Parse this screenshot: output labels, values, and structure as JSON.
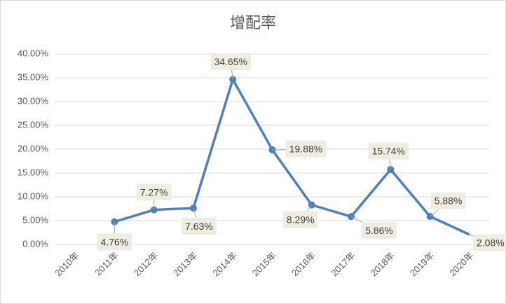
{
  "chart_data": {
    "type": "line",
    "title": "增配率",
    "categories": [
      "2010年",
      "2011年",
      "2012年",
      "2013年",
      "2014年",
      "2015年",
      "2016年",
      "2017年",
      "2018年",
      "2019年",
      "2020年"
    ],
    "values": [
      null,
      4.76,
      7.27,
      7.63,
      34.65,
      19.88,
      8.29,
      5.86,
      15.74,
      5.88,
      2.08
    ],
    "value_labels": [
      null,
      "4.76%",
      "7.27%",
      "7.63%",
      "34.65%",
      "19.88%",
      "8.29%",
      "5.86%",
      "15.74%",
      "5.88%",
      "2.08%"
    ],
    "color": "#4f7fbd",
    "ylim": [
      0,
      40
    ],
    "yticks": [
      {
        "value": 0,
        "label": "0.00%"
      },
      {
        "value": 5,
        "label": "5.00%"
      },
      {
        "value": 10,
        "label": "10.00%"
      },
      {
        "value": 15,
        "label": "15.00%"
      },
      {
        "value": 20,
        "label": "20.00%"
      },
      {
        "value": 25,
        "label": "25.00%"
      },
      {
        "value": 30,
        "label": "30.00%"
      },
      {
        "value": 35,
        "label": "35.00%"
      },
      {
        "value": 40,
        "label": "40.00%"
      }
    ],
    "grid": true
  }
}
